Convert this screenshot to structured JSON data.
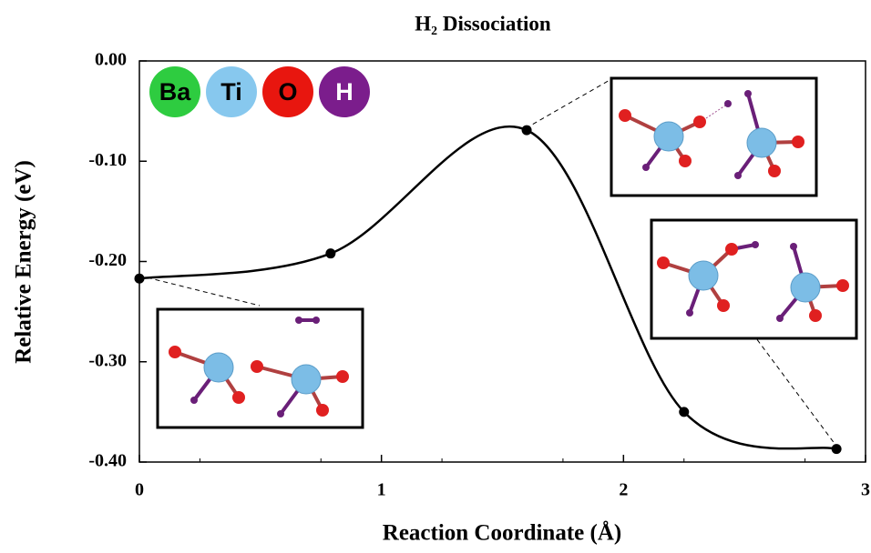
{
  "chart_data": {
    "type": "line",
    "title": "H₂ Dissociation",
    "x_label": "Reaction Coordinate (Å)",
    "y_label": "Relative Energy (eV)",
    "x": [
      0,
      0.79,
      1.6,
      2.25,
      2.88
    ],
    "series": [
      {
        "name": "H2 dissociation",
        "color": "#000000",
        "values": [
          -0.217,
          -0.192,
          -0.069,
          -0.35,
          -0.387
        ]
      }
    ],
    "xlim": [
      0,
      3
    ],
    "xticks": [
      0,
      1,
      2,
      3
    ],
    "ylim": [
      -0.4,
      0
    ],
    "yticks": [
      {
        "value": 0,
        "label": "0.00"
      },
      {
        "value": -0.1,
        "label": "-0.10"
      },
      {
        "value": -0.2,
        "label": "-0.20"
      },
      {
        "value": -0.3,
        "label": "-0.30"
      },
      {
        "value": -0.4,
        "label": "-0.40"
      }
    ],
    "element_legend": [
      {
        "name": "Ba",
        "color": "#2ecc40"
      },
      {
        "name": "Ti",
        "color": "#87c8ee"
      },
      {
        "name": "O",
        "color": "#e8160f"
      },
      {
        "name": "H",
        "color": "#7b1d8c"
      }
    ]
  }
}
